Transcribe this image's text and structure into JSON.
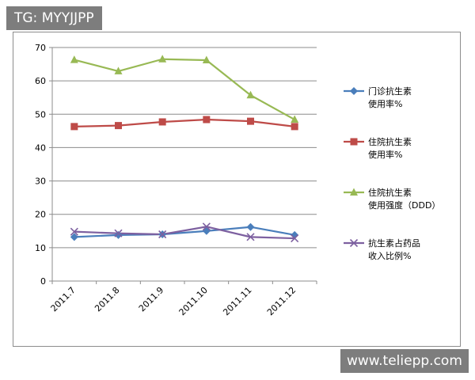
{
  "watermarks": {
    "top": "TG: MYYJJPP",
    "bottom": "www.teliepp.com"
  },
  "chart_data": {
    "type": "line",
    "categories": [
      "2011.7",
      "2011.8",
      "2011.9",
      "2011.10",
      "2011.11",
      "2011.12"
    ],
    "ylim": [
      0,
      70
    ],
    "yticks": [
      0,
      10,
      20,
      30,
      40,
      50,
      60,
      70
    ],
    "grid": true,
    "legend_position": "right",
    "series": [
      {
        "name_lines": [
          "门诊抗生素",
          "使用率%"
        ],
        "color": "#4a7ebb",
        "marker": "diamond",
        "values": [
          13.2,
          13.8,
          14.0,
          15.0,
          16.2,
          13.8
        ]
      },
      {
        "name_lines": [
          "住院抗生素",
          "使用率%"
        ],
        "color": "#be4b48",
        "marker": "square",
        "values": [
          46.3,
          46.6,
          47.7,
          48.4,
          47.9,
          46.3
        ]
      },
      {
        "name_lines": [
          "住院抗生素",
          "使用强度（DDD）"
        ],
        "color": "#98b954",
        "marker": "triangle",
        "values": [
          66.3,
          62.9,
          66.5,
          66.2,
          55.7,
          48.4
        ]
      },
      {
        "name_lines": [
          "抗生素占药品",
          "收入比例%"
        ],
        "color": "#7d60a0",
        "marker": "x",
        "values": [
          14.8,
          14.3,
          14.0,
          16.3,
          13.2,
          12.8
        ]
      }
    ]
  }
}
